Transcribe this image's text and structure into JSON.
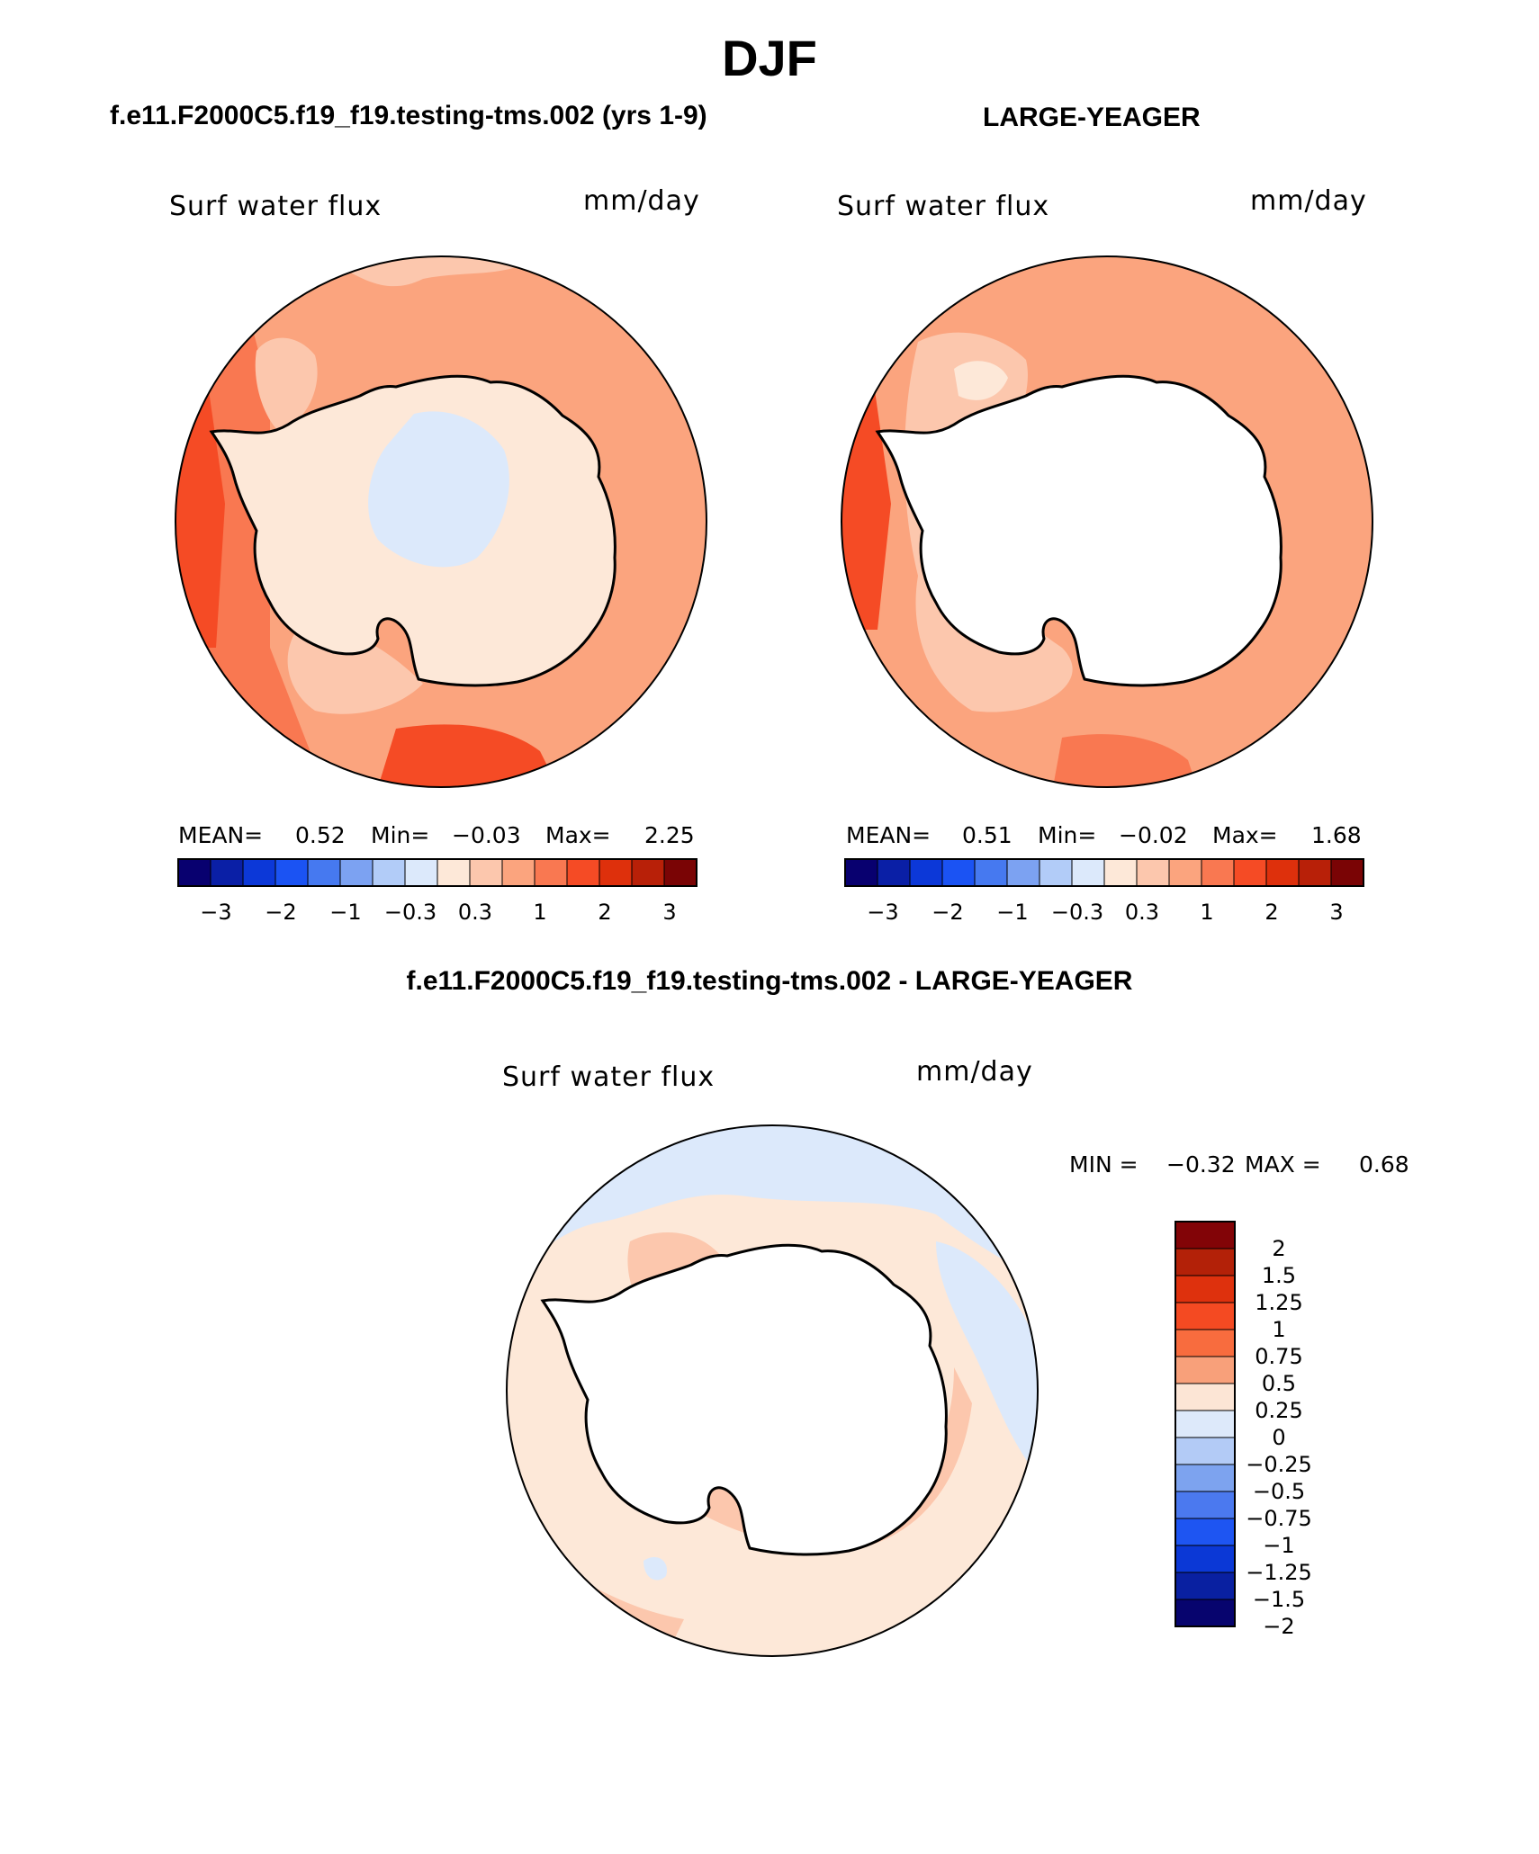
{
  "title": "DJF",
  "panels": [
    {
      "heading": "f.e11.F2000C5.f19_f19.testing-tms.002 (yrs 1-9)",
      "variable": "Surf water flux",
      "units": "mm/day",
      "stats": {
        "mean_label": "MEAN=",
        "mean": "0.52",
        "min_label": "Min=",
        "min": "−0.03",
        "max_label": "Max=",
        "max": "2.25"
      },
      "land": "field"
    },
    {
      "heading": "LARGE-YEAGER",
      "variable": "Surf water flux",
      "units": "mm/day",
      "stats": {
        "mean_label": "MEAN=",
        "mean": "0.51",
        "min_label": "Min=",
        "min": "−0.02",
        "max_label": "Max=",
        "max": "1.68"
      },
      "land": "masked"
    }
  ],
  "difference": {
    "heading": "f.e11.F2000C5.f19_f19.testing-tms.002 - LARGE-YEAGER",
    "variable": "Surf water flux",
    "units": "mm/day",
    "min_label": "MIN =",
    "min": "−0.32",
    "max_label": "MAX =",
    "max": "0.68"
  },
  "colorbar_horizontal": {
    "colors": [
      "#08006f",
      "#0a1fa6",
      "#0c38d8",
      "#1b53f3",
      "#4679f0",
      "#7ca2f2",
      "#b2ccf8",
      "#dce9fb",
      "#fde8d8",
      "#fcc7ad",
      "#fba47e",
      "#f97851",
      "#f54b25",
      "#de300c",
      "#b82008",
      "#7a0405"
    ],
    "labels": [
      "−3",
      "−2",
      "−1",
      "−0.3",
      "0.3",
      "1",
      "2",
      "3"
    ]
  },
  "colorbar_vertical": {
    "colors": [
      "#820407",
      "#b32108",
      "#de310d",
      "#f44a22",
      "#f86c3e",
      "#f8a07a",
      "#fce5d5",
      "#dde9fa",
      "#b3cbf6",
      "#7da3ef",
      "#4b79ef",
      "#1e55f2",
      "#0b38d6",
      "#0920a1",
      "#07046e"
    ],
    "labels": [
      "2",
      "1.5",
      "1.25",
      "1",
      "0.75",
      "0.5",
      "0.25",
      "0",
      "−0.25",
      "−0.5",
      "−0.75",
      "−1",
      "−1.25",
      "−1.5",
      "−2"
    ]
  },
  "map_fill_colors": {
    "deep_orange": "#f54b25",
    "orange": "#f97851",
    "light_orange": "#fba47e",
    "peach": "#fcc7ad",
    "cream": "#fde8d8",
    "light_blue": "#dce9fb",
    "mid_blue": "#b2ccf8",
    "land_mask": "#ffffff",
    "coastline": "#000000"
  }
}
